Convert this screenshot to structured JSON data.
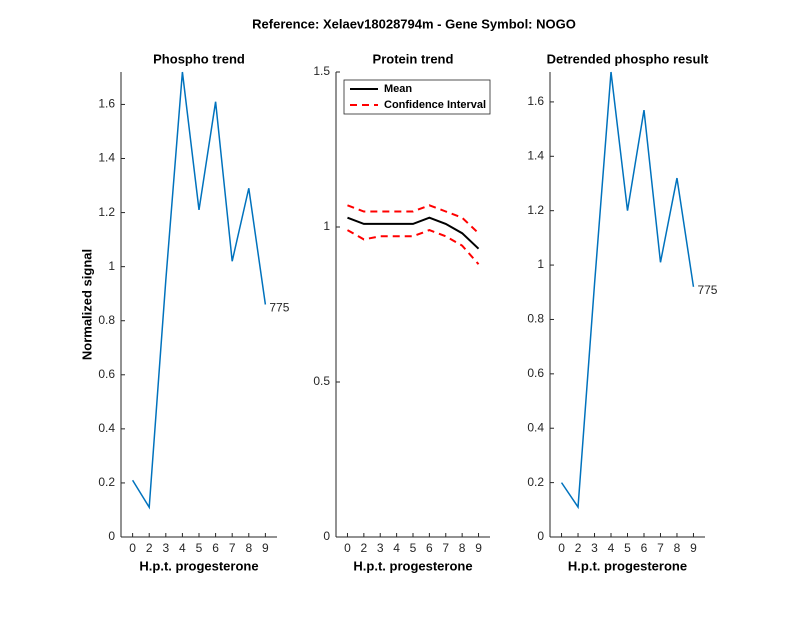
{
  "title": "Reference:  Xelaev18028794m - Gene Symbol:  NOGO",
  "chart_data": [
    {
      "type": "line",
      "title": "Phospho trend",
      "xlabel": "H.p.t. progesterone",
      "ylabel": "Normalized signal",
      "categories": [
        "0",
        "2",
        "3",
        "4",
        "5",
        "6",
        "7",
        "8",
        "9"
      ],
      "series": [
        {
          "color": "#0072bd",
          "values": [
            0.21,
            0.11,
            0.95,
            1.72,
            1.21,
            1.61,
            1.02,
            1.29,
            0.86
          ]
        }
      ],
      "annotation": "775",
      "ylim": [
        0,
        1.72
      ],
      "yticks": [
        0,
        0.2,
        0.4,
        0.6,
        0.8,
        1,
        1.2,
        1.4,
        1.6
      ]
    },
    {
      "type": "line",
      "title": "Protein trend",
      "xlabel": "H.p.t. progesterone",
      "categories": [
        "0",
        "2",
        "3",
        "4",
        "5",
        "6",
        "7",
        "8",
        "9"
      ],
      "series": [
        {
          "name": "Mean",
          "color": "#000000",
          "values": [
            1.03,
            1.01,
            1.01,
            1.01,
            1.01,
            1.03,
            1.01,
            0.98,
            0.93
          ]
        },
        {
          "name": "Confidence Interval",
          "color": "#ff0000",
          "dashed": true,
          "values": [
            1.07,
            1.05,
            1.05,
            1.05,
            1.05,
            1.07,
            1.05,
            1.03,
            0.98
          ]
        },
        {
          "color": "#ff0000",
          "dashed": true,
          "values": [
            0.99,
            0.96,
            0.97,
            0.97,
            0.97,
            0.99,
            0.97,
            0.94,
            0.88
          ]
        }
      ],
      "legend": "upper left",
      "ylim": [
        0,
        1.5
      ],
      "yticks": [
        0,
        0.5,
        1,
        1.5
      ]
    },
    {
      "type": "line",
      "title": "Detrended phospho result",
      "xlabel": "H.p.t. progesterone",
      "categories": [
        "0",
        "2",
        "3",
        "4",
        "5",
        "6",
        "7",
        "8",
        "9"
      ],
      "series": [
        {
          "color": "#0072bd",
          "values": [
            0.2,
            0.11,
            0.93,
            1.71,
            1.2,
            1.57,
            1.01,
            1.32,
            0.92
          ]
        }
      ],
      "annotation": "775",
      "ylim": [
        0,
        1.71
      ],
      "yticks": [
        0,
        0.2,
        0.4,
        0.6,
        0.8,
        1,
        1.2,
        1.4,
        1.6
      ]
    }
  ]
}
